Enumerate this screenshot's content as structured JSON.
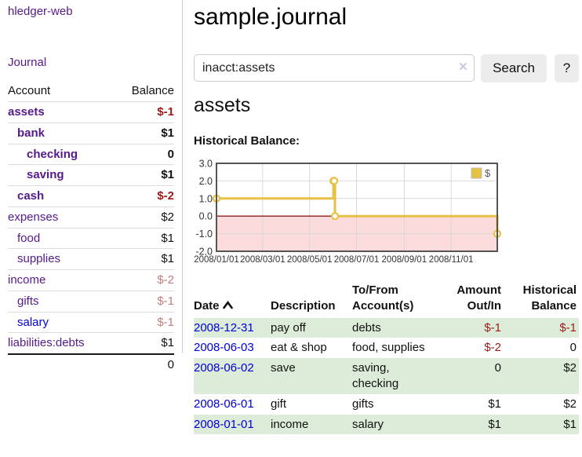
{
  "colors": {
    "link_purple": "#551a8b",
    "link_blue": "#0000dd",
    "neg_strong": "#9e1a1a",
    "neg_soft": "#c07e7e",
    "row_green": "#ddecd8",
    "button_gray": "#ececec",
    "chart_line": "#e6c143",
    "chart_negative_fill": "#fbdbdb",
    "chart_zero_line": "#8f1d1d",
    "chart_grid": "#d8d8d8",
    "chart_border": "#555555"
  },
  "sidebar": {
    "brand": "hledger-web",
    "nav": {
      "journal": "Journal"
    },
    "table_header": {
      "account": "Account",
      "balance": "Balance"
    },
    "accounts": [
      {
        "name": "assets",
        "balance": "$-1",
        "indent": 0,
        "bold": true,
        "balance_tone": "neg-strong",
        "link_tone": "purple"
      },
      {
        "name": "bank",
        "balance": "$1",
        "indent": 1,
        "bold": true,
        "balance_tone": "pos",
        "link_tone": "purple"
      },
      {
        "name": "checking",
        "balance": "0",
        "indent": 2,
        "bold": true,
        "balance_tone": "pos",
        "link_tone": "purple"
      },
      {
        "name": "saving",
        "balance": "$1",
        "indent": 2,
        "bold": true,
        "balance_tone": "pos",
        "link_tone": "purple"
      },
      {
        "name": "cash",
        "balance": "$-2",
        "indent": 1,
        "bold": true,
        "balance_tone": "neg-strong",
        "link_tone": "purple"
      },
      {
        "name": "expenses",
        "balance": "$2",
        "indent": 0,
        "bold": false,
        "balance_tone": "pos",
        "link_tone": "purple"
      },
      {
        "name": "food",
        "balance": "$1",
        "indent": 1,
        "bold": false,
        "balance_tone": "pos",
        "link_tone": "purple"
      },
      {
        "name": "supplies",
        "balance": "$1",
        "indent": 1,
        "bold": false,
        "balance_tone": "pos",
        "link_tone": "purple"
      },
      {
        "name": "income",
        "balance": "$-2",
        "indent": 0,
        "bold": false,
        "balance_tone": "neg-soft",
        "link_tone": "purple"
      },
      {
        "name": "gifts",
        "balance": "$-1",
        "indent": 1,
        "bold": false,
        "balance_tone": "neg-soft",
        "link_tone": "purple"
      },
      {
        "name": "salary",
        "balance": "$-1",
        "indent": 1,
        "bold": false,
        "balance_tone": "neg-soft",
        "link_tone": "blue"
      },
      {
        "name": "liabilities:debts",
        "balance": "$1",
        "indent": 0,
        "bold": false,
        "balance_tone": "pos",
        "link_tone": "purple"
      }
    ],
    "total": "0"
  },
  "main": {
    "title": "sample.journal",
    "search": {
      "value": "inacct:assets",
      "clear_label": "×",
      "button_label": "Search",
      "help_label": "?"
    },
    "account_heading": "assets",
    "section_label": "Historical Balance:"
  },
  "chart_data": {
    "type": "line",
    "step": true,
    "title": "Historical Balance",
    "legend": [
      {
        "label": "$"
      }
    ],
    "legend_position": "top-right",
    "grid": true,
    "x_ticks": [
      "2008/01/01",
      "2008/03/01",
      "2008/05/01",
      "2008/07/01",
      "2008/09/01",
      "2008/11/01"
    ],
    "y_ticks": [
      3.0,
      2.0,
      1.0,
      0.0,
      -1.0,
      -2.0
    ],
    "xlim": [
      "2008-01-01",
      "2008-12-31"
    ],
    "ylim": [
      -2,
      3
    ],
    "negative_region_shaded": true,
    "series": [
      {
        "name": "$",
        "points": [
          {
            "x": "2008-01-01",
            "y": 1
          },
          {
            "x": "2008-06-01",
            "y": 2
          },
          {
            "x": "2008-06-02",
            "y": 2
          },
          {
            "x": "2008-06-03",
            "y": 0
          },
          {
            "x": "2008-12-31",
            "y": -1
          }
        ]
      }
    ]
  },
  "table": {
    "headers": [
      "Date",
      "Description",
      "To/From Account(s)",
      "Amount Out/In",
      "Historical Balance"
    ],
    "sort": {
      "column": "Date",
      "direction": "ascending"
    },
    "rows": [
      {
        "date": "2008-12-31",
        "description": "pay off",
        "accounts": "debts",
        "amount": "$-1",
        "balance": "$-1"
      },
      {
        "date": "2008-06-03",
        "description": "eat & shop",
        "accounts": "food, supplies",
        "amount": "$-2",
        "balance": "0"
      },
      {
        "date": "2008-06-02",
        "description": "save",
        "accounts": "saving, checking",
        "amount": "0",
        "balance": "$2"
      },
      {
        "date": "2008-06-01",
        "description": "gift",
        "accounts": "gifts",
        "amount": "$1",
        "balance": "$2"
      },
      {
        "date": "2008-01-01",
        "description": "income",
        "accounts": "salary",
        "amount": "$1",
        "balance": "$1"
      }
    ]
  }
}
